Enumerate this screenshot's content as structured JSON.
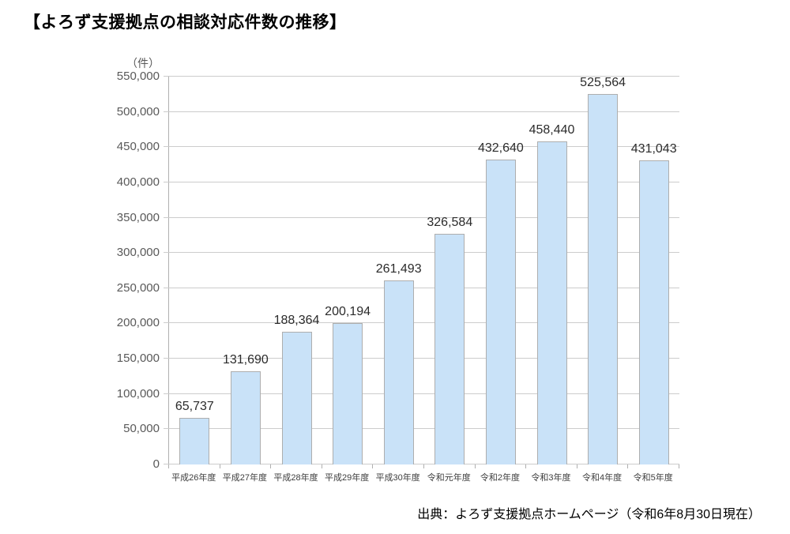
{
  "title": "【よろず支援拠点の相談対応件数の推移】",
  "source": "出典：よろず支援拠点ホームページ（令和6年8月30日現在）",
  "chart_data": {
    "type": "bar",
    "title": "よろず支援拠点の相談対応件数の推移",
    "unit_label": "（件）",
    "categories": [
      "平成26年度",
      "平成27年度",
      "平成28年度",
      "平成29年度",
      "平成30年度",
      "令和元年度",
      "令和2年度",
      "令和3年度",
      "令和4年度",
      "令和5年度"
    ],
    "values": [
      65737,
      131690,
      188364,
      200194,
      261493,
      326584,
      432640,
      458440,
      525564,
      431043
    ],
    "value_labels": [
      "65,737",
      "131,690",
      "188,364",
      "200,194",
      "261,493",
      "326,584",
      "432,640",
      "458,440",
      "525,564",
      "431,043"
    ],
    "xlabel": "",
    "ylabel": "（件）",
    "ylim": [
      0,
      550000
    ],
    "ytick_step": 50000,
    "ytick_labels": [
      "0",
      "50,000",
      "100,000",
      "150,000",
      "200,000",
      "250,000",
      "300,000",
      "350,000",
      "400,000",
      "450,000",
      "500,000",
      "550,000"
    ],
    "grid": true,
    "legend_position": "none",
    "bar_color": "#c9e2f8",
    "bar_border_color": "#aeaeae",
    "grid_color": "#cccccc",
    "axis_color": "#b0b0b0"
  }
}
